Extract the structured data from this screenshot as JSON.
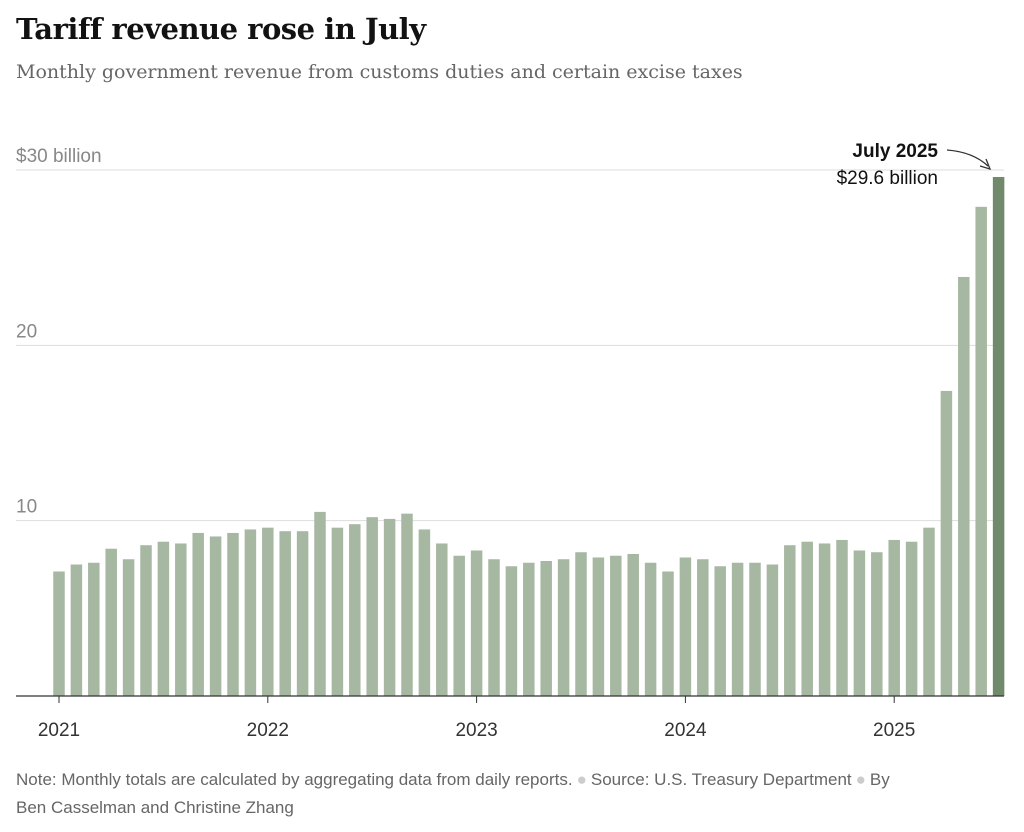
{
  "title": "Tariff revenue rose in July",
  "subtitle": "Monthly government revenue from customs duties and certain excise taxes",
  "footer": {
    "note": "Note: Monthly totals are calculated by aggregating data from daily reports.",
    "source": "Source: U.S. Treasury Department",
    "byline": "By Ben Casselman and Christine Zhang"
  },
  "chart_data": {
    "type": "bar",
    "title": "Tariff revenue rose in July",
    "subtitle": "Monthly government revenue from customs duties and certain excise taxes",
    "ylim": [
      0,
      30
    ],
    "yticks": [
      {
        "value": 30,
        "label": "$30 billion"
      },
      {
        "value": 20,
        "label": "20"
      },
      {
        "value": 10,
        "label": "10"
      }
    ],
    "xticks": [
      {
        "index": 0,
        "label": "2021"
      },
      {
        "index": 12,
        "label": "2022"
      },
      {
        "index": 24,
        "label": "2023"
      },
      {
        "index": 36,
        "label": "2024"
      },
      {
        "index": 48,
        "label": "2025"
      }
    ],
    "grid": true,
    "categories": [
      "Jan 2021",
      "Feb 2021",
      "Mar 2021",
      "Apr 2021",
      "May 2021",
      "Jun 2021",
      "Jul 2021",
      "Aug 2021",
      "Sep 2021",
      "Oct 2021",
      "Nov 2021",
      "Dec 2021",
      "Jan 2022",
      "Feb 2022",
      "Mar 2022",
      "Apr 2022",
      "May 2022",
      "Jun 2022",
      "Jul 2022",
      "Aug 2022",
      "Sep 2022",
      "Oct 2022",
      "Nov 2022",
      "Dec 2022",
      "Jan 2023",
      "Feb 2023",
      "Mar 2023",
      "Apr 2023",
      "May 2023",
      "Jun 2023",
      "Jul 2023",
      "Aug 2023",
      "Sep 2023",
      "Oct 2023",
      "Nov 2023",
      "Dec 2023",
      "Jan 2024",
      "Feb 2024",
      "Mar 2024",
      "Apr 2024",
      "May 2024",
      "Jun 2024",
      "Jul 2024",
      "Aug 2024",
      "Sep 2024",
      "Oct 2024",
      "Nov 2024",
      "Dec 2024",
      "Jan 2025",
      "Feb 2025",
      "Mar 2025",
      "Apr 2025",
      "May 2025",
      "Jun 2025",
      "Jul 2025"
    ],
    "values": [
      7.1,
      7.5,
      7.6,
      8.4,
      7.8,
      8.6,
      8.8,
      8.7,
      9.3,
      9.1,
      9.3,
      9.5,
      9.6,
      9.4,
      9.4,
      10.5,
      9.6,
      9.8,
      10.2,
      10.1,
      10.4,
      9.5,
      8.7,
      8.0,
      8.3,
      7.8,
      7.4,
      7.6,
      7.7,
      7.8,
      8.2,
      7.9,
      8.0,
      8.1,
      7.6,
      7.1,
      7.9,
      7.8,
      7.4,
      7.6,
      7.6,
      7.5,
      8.6,
      8.8,
      8.7,
      8.9,
      8.3,
      8.2,
      8.9,
      8.8,
      9.6,
      17.4,
      23.9,
      27.9,
      29.6
    ],
    "bar_color": "#a7b8a2",
    "highlight_color": "#728a6c",
    "highlight_index": 54,
    "annotation": {
      "label": "July 2025",
      "value_text": "$29.6 billion"
    }
  }
}
